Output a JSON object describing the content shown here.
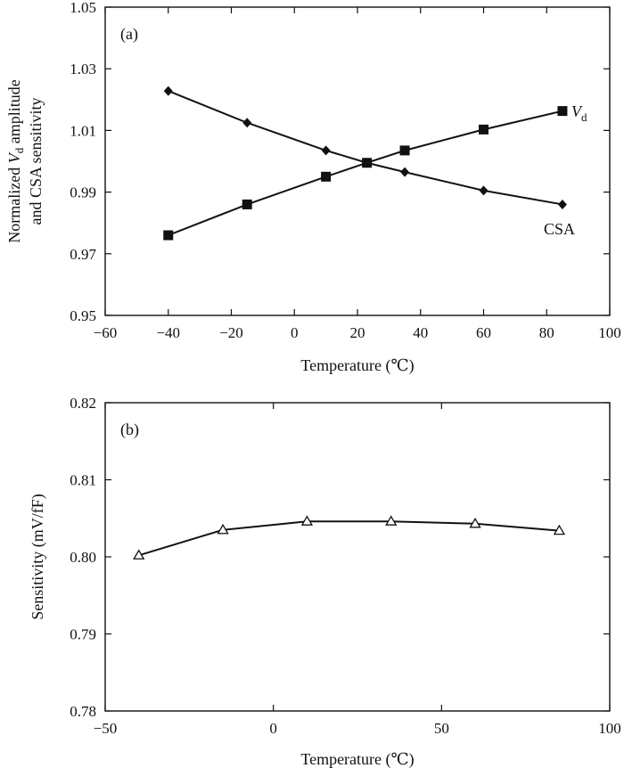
{
  "chart_data": [
    {
      "panel": "(a)",
      "type": "line",
      "xlabel": "Temperature (℃)",
      "ylabel_line1_prefix": "Normalized ",
      "ylabel_line1_var": "V",
      "ylabel_line1_sub": "d",
      "ylabel_line1_suffix": " amplitude",
      "ylabel_line2": "and CSA sensitivity",
      "xlim": [
        -60,
        100
      ],
      "ylim": [
        0.95,
        1.05
      ],
      "xticks": [
        -60,
        -40,
        -20,
        0,
        20,
        40,
        60,
        80,
        100
      ],
      "xtick_labels": [
        "−60",
        "−40",
        "−20",
        "0",
        "20",
        "40",
        "60",
        "80",
        "100"
      ],
      "yticks": [
        0.95,
        0.97,
        0.99,
        1.01,
        1.03,
        1.05
      ],
      "ytick_labels": [
        "0.95",
        "0.97",
        "0.99",
        "1.01",
        "1.03",
        "1.05"
      ],
      "series": [
        {
          "name_var": "V",
          "name_sub": "d",
          "marker": "square",
          "x": [
            -40,
            -15,
            10,
            23,
            35,
            60,
            85
          ],
          "y": [
            0.976,
            0.986,
            0.995,
            0.9995,
            1.0035,
            1.0103,
            1.0163
          ]
        },
        {
          "name": "CSA",
          "marker": "diamond",
          "x": [
            -40,
            -15,
            10,
            23,
            35,
            60,
            85
          ],
          "y": [
            1.0228,
            1.0125,
            1.0035,
            0.9995,
            0.9965,
            0.9905,
            0.986
          ]
        }
      ]
    },
    {
      "panel": "(b)",
      "type": "line",
      "xlabel": "Temperature (℃)",
      "ylabel": "Sensitivity (mV/fF)",
      "xlim": [
        -50,
        100
      ],
      "ylim": [
        0.78,
        0.82
      ],
      "xticks": [
        -50,
        0,
        50,
        100
      ],
      "xtick_labels": [
        "−50",
        "0",
        "50",
        "100"
      ],
      "yticks": [
        0.78,
        0.79,
        0.8,
        0.81,
        0.82
      ],
      "ytick_labels": [
        "0.78",
        "0.79",
        "0.80",
        "0.81",
        "0.82"
      ],
      "series": [
        {
          "marker": "triangle-open",
          "x": [
            -40,
            -15,
            10,
            35,
            60,
            85
          ],
          "y": [
            0.8002,
            0.8035,
            0.8046,
            0.8046,
            0.8043,
            0.8034
          ]
        }
      ]
    }
  ]
}
